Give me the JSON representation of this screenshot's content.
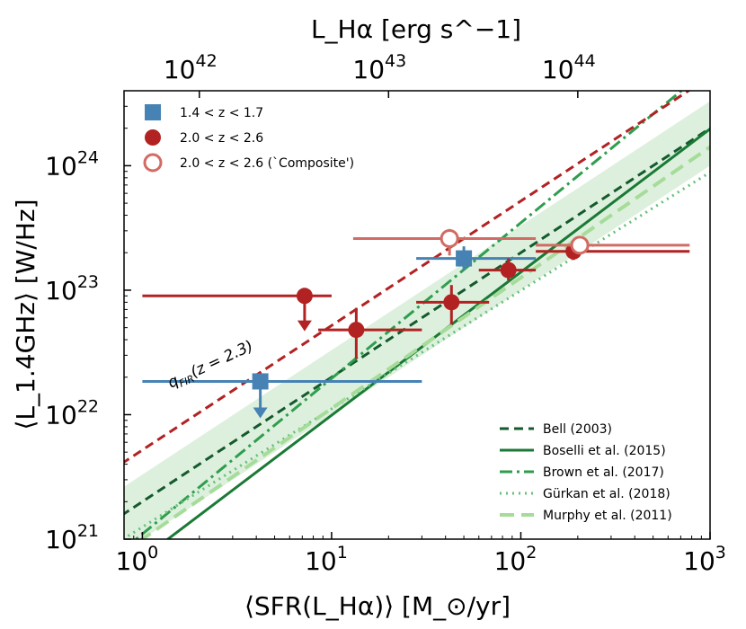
{
  "chart_data": {
    "type": "scatter",
    "xscale": "log",
    "yscale": "log",
    "xlim": [
      0.8,
      1000
    ],
    "ylim": [
      1e+21,
      4e+24
    ],
    "xlabel": "⟨SFR(L_Hα)⟩ [M_⊙/yr]",
    "ylabel": "⟨L_1.4GHz⟩ [W/Hz]",
    "top_xlabel": "L_Hα [erg s^−1]",
    "x_ticks": [
      {
        "value": 1,
        "base": "10",
        "exp": "0"
      },
      {
        "value": 10,
        "base": "10",
        "exp": "1"
      },
      {
        "value": 100,
        "base": "10",
        "exp": "2"
      },
      {
        "value": 1000,
        "base": "10",
        "exp": "3"
      }
    ],
    "y_ticks": [
      {
        "value": 1e+21,
        "base": "10",
        "exp": "21"
      },
      {
        "value": 1e+22,
        "base": "10",
        "exp": "22"
      },
      {
        "value": 1e+23,
        "base": "10",
        "exp": "23"
      },
      {
        "value": 1e+24,
        "base": "10",
        "exp": "24"
      }
    ],
    "top_ticks": [
      {
        "sfr": 2.0,
        "base": "10",
        "exp": "42"
      },
      {
        "sfr": 20.0,
        "base": "10",
        "exp": "43"
      },
      {
        "sfr": 200.0,
        "base": "10",
        "exp": "44"
      }
    ],
    "points": [
      {
        "series": "1.4<z<1.7",
        "x": 4.2,
        "y": 1.85e+22,
        "xlo": 1.0,
        "xhi": 30,
        "upper_limit": true,
        "yend": 1e+22,
        "marker": "square",
        "color": "#4682b4",
        "filled": true
      },
      {
        "series": "1.4<z<1.7",
        "x": 50,
        "y": 1.8e+23,
        "xlo": 28,
        "xhi": 120,
        "ylo": 1.45e+23,
        "yhi": 2.25e+23,
        "marker": "square",
        "color": "#4682b4",
        "filled": true
      },
      {
        "series": "2.0<z<2.6",
        "x": 7.2,
        "y": 9e+22,
        "xlo": 1.0,
        "xhi": 10,
        "upper_limit": true,
        "yend": 5e+22,
        "marker": "circle",
        "color": "#b22222",
        "filled": true
      },
      {
        "series": "2.0<z<2.6",
        "x": 13.5,
        "y": 4.8e+22,
        "xlo": 8.5,
        "xhi": 30,
        "ylo": 2.8e+22,
        "yhi": 7.2e+22,
        "marker": "circle",
        "color": "#b22222",
        "filled": true
      },
      {
        "series": "2.0<z<2.6",
        "x": 43,
        "y": 8e+22,
        "xlo": 28,
        "xhi": 68,
        "ylo": 5.3e+22,
        "yhi": 1.1e+23,
        "marker": "circle",
        "color": "#b22222",
        "filled": true
      },
      {
        "series": "2.0<z<2.6",
        "x": 86,
        "y": 1.45e+23,
        "xlo": 60,
        "xhi": 120,
        "ylo": 1.2e+23,
        "yhi": 1.8e+23,
        "marker": "circle",
        "color": "#b22222",
        "filled": true
      },
      {
        "series": "2.0<z<2.6",
        "x": 190,
        "y": 2.05e+23,
        "xlo": 120,
        "xhi": 780,
        "ylo": 1.75e+23,
        "yhi": 2.35e+23,
        "marker": "circle",
        "color": "#b22222",
        "filled": true
      },
      {
        "series": "2.0<z<2.6 (`Composite')",
        "x": 42,
        "y": 2.6e+23,
        "xlo": 13,
        "xhi": 120,
        "ylo": 1.9e+23,
        "yhi": 3.1e+23,
        "marker": "circle",
        "color": "#d26b63",
        "filled": false
      },
      {
        "series": "2.0<z<2.6 (`Composite')",
        "x": 205,
        "y": 2.3e+23,
        "xlo": 120,
        "xhi": 780,
        "ylo": 2.05e+23,
        "yhi": 2.55e+23,
        "marker": "circle",
        "color": "#d26b63",
        "filled": false
      }
    ],
    "relations": [
      {
        "name": "Bell (2003)",
        "x0": 1,
        "y0": 2e+21,
        "slope": 1.0,
        "color": "#145a2c",
        "dash": "10,6",
        "width": 3
      },
      {
        "name": "Boselli et al. (2015)",
        "x0": 1,
        "y0": 7e+20,
        "slope": 1.15,
        "color": "#1a7a35",
        "dash": "",
        "width": 3
      },
      {
        "name": "Brown et al. (2017)",
        "x0": 1,
        "y0": 1.1e+21,
        "slope": 1.25,
        "color": "#2e9e4e",
        "dash": "14,5,3,5",
        "width": 3
      },
      {
        "name": "Gürkan et al. (2018)",
        "x0": 1,
        "y0": 1.25e+21,
        "slope": 0.95,
        "color": "#66c07a",
        "dash": "2,5",
        "width": 3
      },
      {
        "name": "Murphy et al. (2011)",
        "x0": 1,
        "y0": 1e+21,
        "slope": 1.05,
        "color": "#a6dc9a",
        "dash": "16,8",
        "width": 4
      }
    ],
    "qfir_line": {
      "label": "q",
      "label_sub": "FIR",
      "label_rest": "(z = 2.3)",
      "x0": 1,
      "y0": 5.2e+21,
      "slope": 1.0,
      "color": "#b22222",
      "dash": "10,6"
    },
    "band": {
      "x0": 1,
      "lower0": 1e+21,
      "upper0": 3.3e+21,
      "slope": 1.0,
      "color": "#2ca02c",
      "opacity": 0.16
    },
    "legend_points": [
      {
        "label": "1.4 < z < 1.7",
        "marker": "square",
        "color": "#4682b4",
        "filled": true
      },
      {
        "label": "2.0 < z < 2.6",
        "marker": "circle",
        "color": "#b22222",
        "filled": true
      },
      {
        "label": "2.0 < z < 2.6 (`Composite')",
        "marker": "circle",
        "color": "#d26b63",
        "filled": false
      }
    ],
    "legend_lines": [
      {
        "label": "Bell (2003)"
      },
      {
        "label": "Boselli et al. (2015)"
      },
      {
        "label": "Brown et al. (2017)"
      },
      {
        "label": "Gürkan et al. (2018)"
      },
      {
        "label": "Murphy et al. (2011)"
      }
    ]
  }
}
